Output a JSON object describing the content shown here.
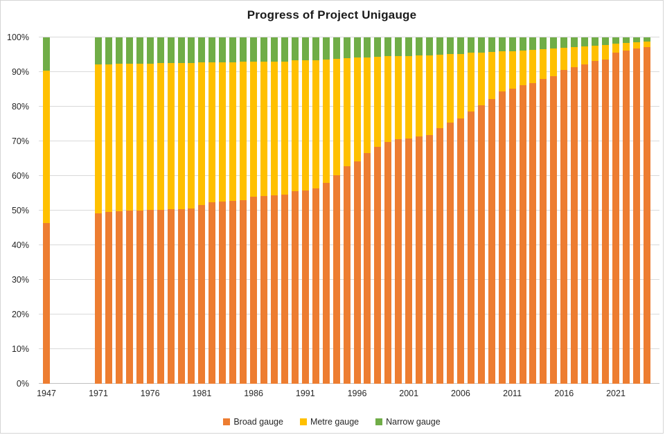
{
  "title": "Progress of Project Unigauge",
  "legend": {
    "items": [
      {
        "label": "Broad gauge",
        "color": "#ED7D31"
      },
      {
        "label": "Metre gauge",
        "color": "#FFC000"
      },
      {
        "label": "Narrow gauge",
        "color": "#70AD47"
      }
    ]
  },
  "axes": {
    "y_ticks": [
      "0%",
      "10%",
      "20%",
      "30%",
      "40%",
      "50%",
      "60%",
      "70%",
      "80%",
      "90%",
      "100%"
    ],
    "x_tick_years": [
      1947,
      1971,
      1976,
      1981,
      1986,
      1991,
      1996,
      2001,
      2006,
      2011,
      2016,
      2021
    ]
  },
  "colors": {
    "broad_gauge": "#ED7D31",
    "metre_gauge": "#FFC000",
    "narrow_gauge": "#70AD47",
    "gridline": "#d9d9d9",
    "axis_line": "#bfbfbf",
    "text": "#262626",
    "border": "#d4d4d4"
  },
  "chart_data": {
    "type": "bar",
    "subtype": "stacked-100-percent",
    "title": "Progress of Project Unigauge",
    "xlabel": "",
    "ylabel": "",
    "ylim": [
      0,
      100
    ],
    "grid": true,
    "legend_position": "bottom",
    "series_names": [
      "Broad gauge",
      "Metre gauge",
      "Narrow gauge"
    ],
    "columns": [
      "year",
      "broad_gauge_pct",
      "metre_gauge_pct",
      "narrow_gauge_pct"
    ],
    "rows": [
      [
        1947,
        46.5,
        44.0,
        9.5
      ],
      [
        1971,
        49.3,
        43.0,
        7.7
      ],
      [
        1972,
        49.6,
        42.7,
        7.7
      ],
      [
        1973,
        49.8,
        42.6,
        7.6
      ],
      [
        1974,
        50.0,
        42.4,
        7.6
      ],
      [
        1975,
        50.1,
        42.4,
        7.5
      ],
      [
        1976,
        50.2,
        42.3,
        7.5
      ],
      [
        1977,
        50.3,
        42.3,
        7.4
      ],
      [
        1978,
        50.4,
        42.2,
        7.4
      ],
      [
        1979,
        50.5,
        42.2,
        7.3
      ],
      [
        1980,
        50.6,
        42.1,
        7.3
      ],
      [
        1981,
        51.6,
        41.2,
        7.2
      ],
      [
        1982,
        52.4,
        40.4,
        7.2
      ],
      [
        1983,
        52.6,
        40.3,
        7.1
      ],
      [
        1984,
        52.9,
        40.0,
        7.1
      ],
      [
        1985,
        53.0,
        40.0,
        7.0
      ],
      [
        1986,
        54.1,
        38.9,
        7.0
      ],
      [
        1987,
        54.3,
        38.7,
        7.0
      ],
      [
        1988,
        54.4,
        38.7,
        6.9
      ],
      [
        1989,
        54.6,
        38.5,
        6.9
      ],
      [
        1990,
        55.6,
        37.8,
        6.6
      ],
      [
        1991,
        55.8,
        37.7,
        6.5
      ],
      [
        1992,
        56.4,
        37.1,
        6.5
      ],
      [
        1993,
        58.1,
        35.6,
        6.3
      ],
      [
        1994,
        60.3,
        33.6,
        6.1
      ],
      [
        1995,
        62.8,
        31.3,
        5.9
      ],
      [
        1996,
        64.3,
        30.0,
        5.7
      ],
      [
        1997,
        66.6,
        27.7,
        5.7
      ],
      [
        1998,
        68.4,
        26.0,
        5.6
      ],
      [
        1999,
        69.8,
        24.8,
        5.4
      ],
      [
        2000,
        70.6,
        24.1,
        5.3
      ],
      [
        2001,
        70.9,
        23.8,
        5.3
      ],
      [
        2002,
        71.4,
        23.5,
        5.1
      ],
      [
        2003,
        71.9,
        23.0,
        5.1
      ],
      [
        2004,
        73.9,
        21.2,
        4.9
      ],
      [
        2005,
        75.5,
        19.8,
        4.7
      ],
      [
        2006,
        76.6,
        18.7,
        4.7
      ],
      [
        2007,
        78.6,
        17.0,
        4.4
      ],
      [
        2008,
        80.5,
        15.2,
        4.3
      ],
      [
        2009,
        82.3,
        13.5,
        4.2
      ],
      [
        2010,
        84.5,
        11.5,
        4.0
      ],
      [
        2011,
        85.3,
        10.8,
        3.9
      ],
      [
        2012,
        86.3,
        10.0,
        3.7
      ],
      [
        2013,
        86.9,
        9.5,
        3.6
      ],
      [
        2014,
        88.1,
        8.5,
        3.4
      ],
      [
        2015,
        88.9,
        7.9,
        3.2
      ],
      [
        2016,
        90.6,
        6.4,
        3.0
      ],
      [
        2017,
        91.4,
        5.8,
        2.8
      ],
      [
        2018,
        92.3,
        5.1,
        2.6
      ],
      [
        2019,
        93.3,
        4.3,
        2.4
      ],
      [
        2020,
        93.7,
        4.1,
        2.2
      ],
      [
        2021,
        95.6,
        2.6,
        1.8
      ],
      [
        2022,
        96.3,
        2.1,
        1.6
      ],
      [
        2023,
        96.9,
        1.7,
        1.4
      ],
      [
        2024,
        97.3,
        1.5,
        1.2
      ]
    ]
  }
}
